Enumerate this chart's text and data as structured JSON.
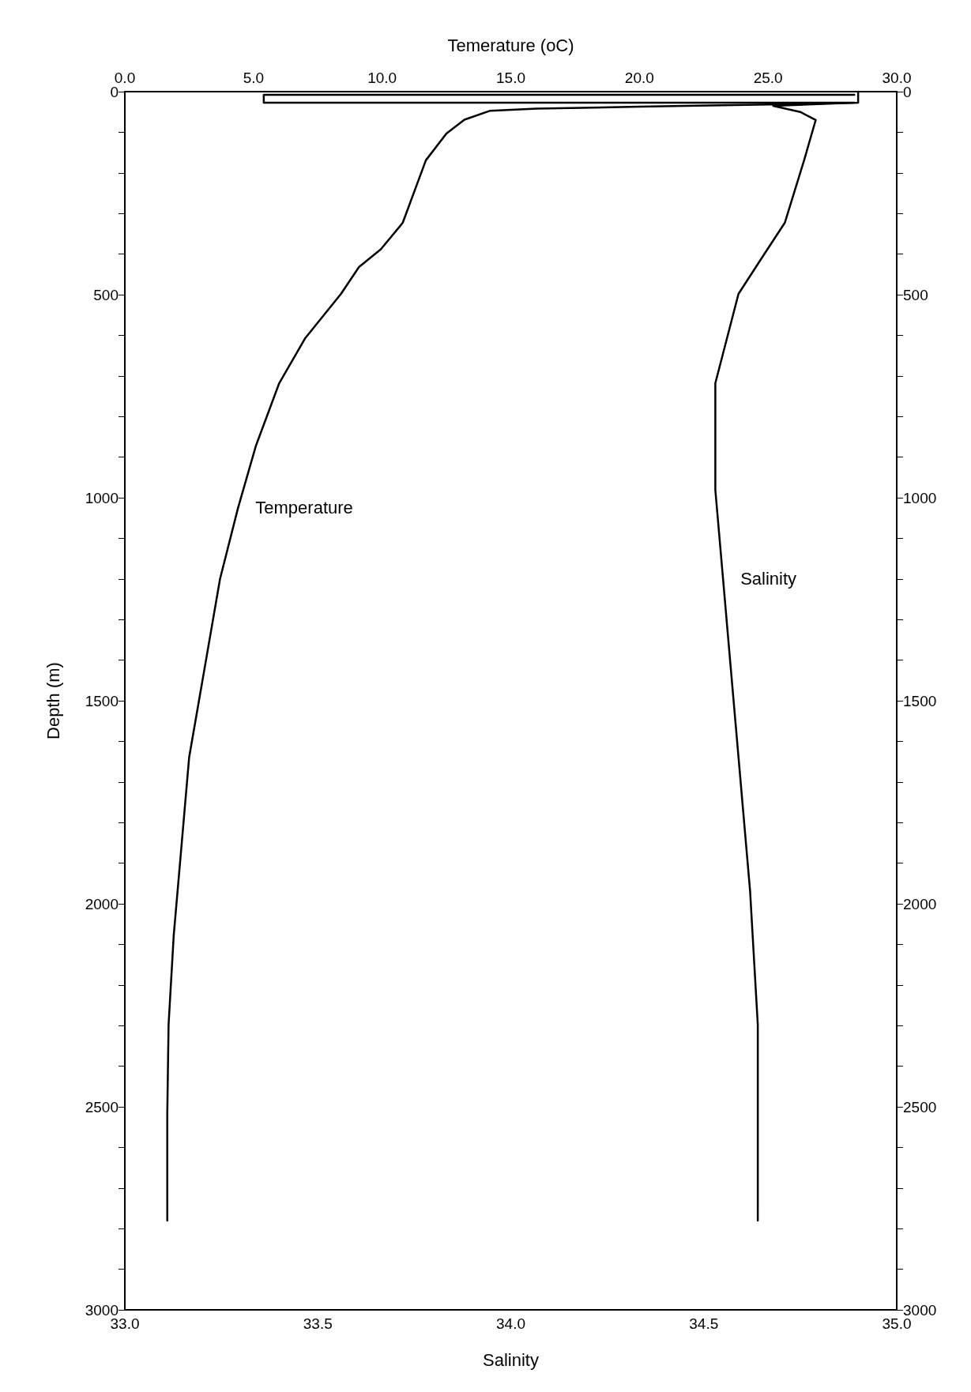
{
  "chart_data": {
    "type": "line",
    "xlabel": "Salinity",
    "x2label": "Temerature (oC)",
    "ylabel": "Depth (m)",
    "xlim": [
      33,
      35
    ],
    "xticks": [
      {
        "value": 33,
        "label": "33.0"
      },
      {
        "value": 33.5,
        "label": "33.5"
      },
      {
        "value": 34,
        "label": "34.0"
      },
      {
        "value": 34.5,
        "label": "34.5"
      },
      {
        "value": 35,
        "label": "35.0"
      }
    ],
    "x2lim": [
      0,
      30
    ],
    "x2ticks": [
      {
        "value": 0,
        "label": "0.0"
      },
      {
        "value": 5,
        "label": "5.0"
      },
      {
        "value": 10,
        "label": "10.0"
      },
      {
        "value": 15,
        "label": "15.0"
      },
      {
        "value": 20,
        "label": "20.0"
      },
      {
        "value": 25,
        "label": "25.0"
      },
      {
        "value": 30,
        "label": "30.0"
      }
    ],
    "ylim": [
      3000,
      0
    ],
    "yticks": [
      0,
      {
        "value": 100,
        "label": null
      },
      {
        "value": 200,
        "label": null
      },
      {
        "value": 300,
        "label": null
      },
      {
        "value": 400,
        "label": null
      },
      500,
      {
        "value": 600,
        "label": null
      },
      {
        "value": 700,
        "label": null
      },
      {
        "value": 800,
        "label": null
      },
      {
        "value": 900,
        "label": null
      },
      1000,
      {
        "value": 1100,
        "label": null
      },
      {
        "value": 1200,
        "label": null
      },
      {
        "value": 1300,
        "label": null
      },
      {
        "value": 1400,
        "label": null
      },
      1500,
      {
        "value": 1600,
        "label": null
      },
      {
        "value": 1700,
        "label": null
      },
      {
        "value": 1800,
        "label": null
      },
      {
        "value": 1900,
        "label": null
      },
      2000,
      {
        "value": 2100,
        "label": null
      },
      {
        "value": 2200,
        "label": null
      },
      {
        "value": 2300,
        "label": null
      },
      {
        "value": 2400,
        "label": null
      },
      2500,
      {
        "value": 2600,
        "label": null
      },
      {
        "value": 2700,
        "label": null
      },
      {
        "value": 2800,
        "label": null
      },
      {
        "value": 2900,
        "label": null
      },
      3000
    ],
    "y2lim": [
      3000,
      0
    ],
    "y2ticks": [
      0,
      {
        "value": 100,
        "label": null
      },
      {
        "value": 200,
        "label": null
      },
      {
        "value": 300,
        "label": null
      },
      {
        "value": 400,
        "label": null
      },
      500,
      {
        "value": 600,
        "label": null
      },
      {
        "value": 700,
        "label": null
      },
      {
        "value": 800,
        "label": null
      },
      {
        "value": 900,
        "label": null
      },
      1000,
      {
        "value": 1100,
        "label": null
      },
      {
        "value": 1200,
        "label": null
      },
      {
        "value": 1300,
        "label": null
      },
      {
        "value": 1400,
        "label": null
      },
      1500,
      {
        "value": 1600,
        "label": null
      },
      {
        "value": 1700,
        "label": null
      },
      {
        "value": 1800,
        "label": null
      },
      {
        "value": 1900,
        "label": null
      },
      2000,
      {
        "value": 2100,
        "label": null
      },
      {
        "value": 2200,
        "label": null
      },
      {
        "value": 2300,
        "label": null
      },
      {
        "value": 2400,
        "label": null
      },
      2500,
      {
        "value": 2600,
        "label": null
      },
      {
        "value": 2700,
        "label": null
      },
      {
        "value": 2800,
        "label": null
      },
      {
        "value": 2900,
        "label": null
      },
      3000
    ],
    "marker": "none",
    "series": [
      {
        "name": "Temperature",
        "color": "#000000",
        "axis": "x2",
        "x": [
          28.5,
          28.5,
          25.5,
          20,
          16,
          14.2,
          13.2,
          12.5,
          11.7,
          10.8,
          9.95,
          9.1,
          8.4,
          7.0,
          6.0,
          5.1,
          4.4,
          3.7,
          3.1,
          2.5,
          2.2,
          1.9,
          1.7,
          1.65,
          1.65
        ],
        "values": [
          0,
          27,
          31,
          37,
          42,
          47,
          69,
          103,
          169,
          323,
          388,
          432,
          498,
          608,
          718,
          871,
          1025,
          1200,
          1420,
          1639,
          1859,
          2078,
          2298,
          2517,
          2780
        ]
      },
      {
        "name": "Salinity",
        "color": "#000000",
        "x": [
          34.89,
          33.36,
          33.36,
          34.89,
          34.68,
          34.75,
          34.79,
          34.76,
          34.71,
          34.65,
          34.59,
          34.56,
          34.53,
          34.53,
          34.55,
          34.57,
          34.59,
          34.62,
          34.64,
          34.64,
          34.64
        ],
        "values": [
          8,
          8,
          27,
          27,
          35,
          50,
          70,
          169,
          323,
          410,
          498,
          608,
          718,
          981,
          1200,
          1420,
          1639,
          1968,
          2298,
          2517,
          2780
        ]
      }
    ]
  }
}
